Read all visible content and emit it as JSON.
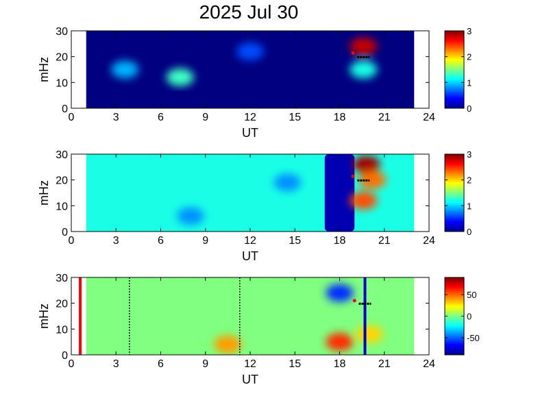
{
  "title": "2025 Jul 30",
  "chart_data": [
    {
      "type": "heatmap",
      "xlabel": "UT",
      "ylabel": "mHz",
      "xlim": [
        0,
        24
      ],
      "ylim": [
        0,
        30
      ],
      "xticks": [
        "0",
        "3",
        "6",
        "9",
        "12",
        "15",
        "18",
        "21",
        "24"
      ],
      "yticks": [
        "0",
        "10",
        "20",
        "30"
      ],
      "colorbar": {
        "range": [
          0,
          3
        ],
        "ticks": [
          "0",
          "1",
          "2",
          "3"
        ]
      },
      "data_extent": [
        1,
        23
      ],
      "background_value": 0,
      "features": [
        {
          "x": 3.6,
          "y": 15,
          "value": 0.9
        },
        {
          "x": 7.3,
          "y": 12,
          "value": 1.3
        },
        {
          "x": 12,
          "y": 22,
          "value": 0.6
        },
        {
          "x": 19.6,
          "y": 24,
          "value": 2.8
        },
        {
          "x": 19.6,
          "y": 15,
          "value": 1.2
        }
      ],
      "markers": [
        {
          "x": 18.9,
          "y": 21.4,
          "color": "#ff0000"
        },
        {
          "x": 19.6,
          "y": 19.8,
          "color": "#000000"
        }
      ]
    },
    {
      "type": "heatmap",
      "xlabel": "UT",
      "ylabel": "mHz",
      "xlim": [
        0,
        24
      ],
      "ylim": [
        0,
        30
      ],
      "xticks": [
        "0",
        "3",
        "6",
        "9",
        "12",
        "15",
        "18",
        "21",
        "24"
      ],
      "yticks": [
        "0",
        "10",
        "20",
        "30"
      ],
      "colorbar": {
        "range": [
          0,
          3
        ],
        "ticks": [
          "0",
          "1",
          "2",
          "3"
        ]
      },
      "data_extent": [
        1,
        23
      ],
      "background_value": 1.2,
      "low_region": [
        17,
        19
      ],
      "features": [
        {
          "x": 19.8,
          "y": 26,
          "value": 2.9
        },
        {
          "x": 20.2,
          "y": 20,
          "value": 2.3
        },
        {
          "x": 19.6,
          "y": 12,
          "value": 2.4
        },
        {
          "x": 14.5,
          "y": 19,
          "value": 0.8
        },
        {
          "x": 8,
          "y": 6,
          "value": 0.8
        }
      ],
      "markers": [
        {
          "x": 18.9,
          "y": 21.4,
          "color": "#ff0000"
        },
        {
          "x": 19.6,
          "y": 19.8,
          "color": "#000000"
        }
      ]
    },
    {
      "type": "heatmap",
      "xlabel": "UT",
      "ylabel": "mHz",
      "xlim": [
        0,
        24
      ],
      "ylim": [
        0,
        30
      ],
      "xticks": [
        "0",
        "3",
        "6",
        "9",
        "12",
        "15",
        "18",
        "21",
        "24"
      ],
      "yticks": [
        "0",
        "10",
        "20",
        "30"
      ],
      "colorbar": {
        "range": [
          -90,
          90
        ],
        "ticks": [
          "50",
          "0",
          "-50"
        ],
        "tick_values": [
          50,
          0,
          -50
        ]
      },
      "data_extent": [
        1,
        23
      ],
      "background_value": 0,
      "features": [
        {
          "x": 18,
          "y": 5,
          "value": 60
        },
        {
          "x": 10.5,
          "y": 4,
          "value": 40
        },
        {
          "x": 18,
          "y": 24,
          "value": -60
        },
        {
          "x": 20,
          "y": 8,
          "value": 30
        }
      ],
      "vlines": [
        {
          "x": 0.6,
          "color": "#ff0000",
          "style": "solid"
        },
        {
          "x": 3.9,
          "color": "#000000",
          "style": "dotted"
        },
        {
          "x": 11.3,
          "color": "#000000",
          "style": "dotted"
        },
        {
          "x": 19.7,
          "color": "#0000cc",
          "style": "solid"
        }
      ],
      "markers": [
        {
          "x": 19,
          "y": 21,
          "color": "#ff0000"
        },
        {
          "x": 19.7,
          "y": 19.8,
          "color": "#000000"
        }
      ]
    }
  ]
}
